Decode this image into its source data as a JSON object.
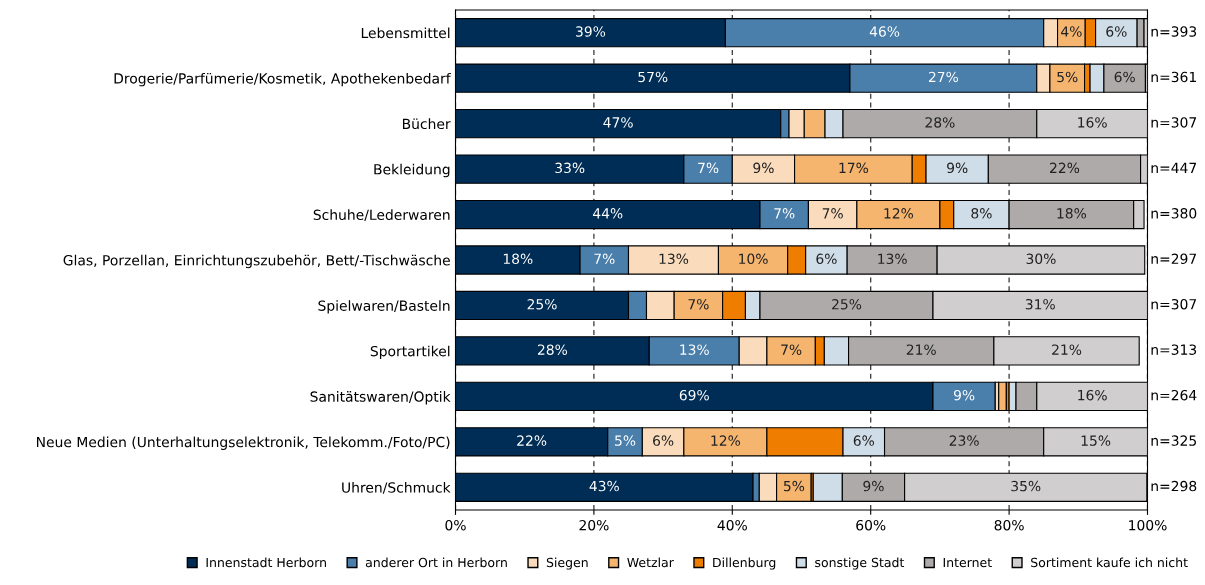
{
  "chart_data": {
    "type": "bar",
    "orientation": "horizontal",
    "stacked": true,
    "categories": [
      "Lebensmittel",
      "Drogerie/Parfümerie/Kosmetik, Apothekenbedarf",
      "Bücher",
      "Bekleidung",
      "Schuhe/Lederwaren",
      "Glas, Porzellan, Einrichtungszubehör, Bett/-Tischwäsche",
      "Spielwaren/Basteln",
      "Sportartikel",
      "Sanitätswaren/Optik",
      "Neue Medien (Unterhaltungselektronik, Telekomm./Foto/PC)",
      "Uhren/Schmuck"
    ],
    "series": [
      {
        "name": "Innenstadt Herborn",
        "color": "#002d55",
        "values": [
          39,
          57,
          47,
          33,
          44,
          18,
          25,
          28,
          69,
          22,
          43
        ],
        "value_labels": [
          "39%",
          "57%",
          "47%",
          "33%",
          "44%",
          "18%",
          "25%",
          "28%",
          "69%",
          "22%",
          "43%"
        ]
      },
      {
        "name": "anderer Ort in Herborn",
        "color": "#4a7eab",
        "values": [
          46,
          27,
          1.2,
          7,
          7,
          7,
          2.6,
          13,
          9,
          5,
          0.9
        ],
        "value_labels": [
          "46%",
          "27%",
          null,
          "7%",
          "7%",
          "7%",
          null,
          "13%",
          "9%",
          "5%",
          null
        ]
      },
      {
        "name": "Siegen",
        "color": "#fadcbc",
        "values": [
          2,
          1.9,
          2.2,
          9,
          7,
          13,
          4,
          4,
          0.5,
          6,
          2.5
        ],
        "value_labels": [
          null,
          null,
          null,
          "9%",
          "7%",
          "13%",
          null,
          null,
          null,
          "6%",
          null
        ]
      },
      {
        "name": "Wetzlar",
        "color": "#f5b56e",
        "values": [
          4,
          5,
          3,
          17,
          12,
          10,
          7,
          7,
          1.1,
          12,
          5
        ],
        "value_labels": [
          "4%",
          "5%",
          null,
          "17%",
          "12%",
          "10%",
          "7%",
          "7%",
          null,
          "12%",
          "5%"
        ]
      },
      {
        "name": "Dillenburg",
        "color": "#ee7d00",
        "values": [
          1.5,
          0.8,
          null,
          2,
          2,
          2.6,
          3.3,
          1.3,
          0.4,
          11,
          0.3
        ],
        "value_labels": [
          null,
          null,
          null,
          null,
          null,
          null,
          null,
          null,
          null,
          null,
          null
        ]
      },
      {
        "name": "sonstige Stadt",
        "color": "#cfdde8",
        "values": [
          6,
          2,
          2.6,
          9,
          8,
          6,
          2.1,
          3.5,
          1,
          6,
          4.2
        ],
        "value_labels": [
          "6%",
          null,
          null,
          "9%",
          "8%",
          "6%",
          null,
          null,
          null,
          "6%",
          null
        ]
      },
      {
        "name": "Internet",
        "color": "#aeaaaa",
        "values": [
          1,
          6,
          28,
          22,
          18,
          13,
          25,
          21,
          3,
          23,
          9
        ],
        "value_labels": [
          null,
          "6%",
          "28%",
          "22%",
          "18%",
          "13%",
          "25%",
          "21%",
          null,
          "23%",
          "9%"
        ]
      },
      {
        "name": "Sortiment kaufe ich nicht",
        "color": "#d0cecf",
        "values": [
          0.5,
          0.3,
          16,
          1,
          1.5,
          30,
          31,
          21,
          16,
          15,
          35
        ],
        "value_labels": [
          null,
          null,
          "16%",
          null,
          null,
          "30%",
          "31%",
          "21%",
          "16%",
          "15%",
          "35%"
        ]
      }
    ],
    "xlim": [
      0,
      100
    ],
    "xticks": [
      {
        "value": 0,
        "label": "0%"
      },
      {
        "value": 20,
        "label": "20%"
      },
      {
        "value": 40,
        "label": "40%"
      },
      {
        "value": 60,
        "label": "60%"
      },
      {
        "value": 80,
        "label": "80%"
      },
      {
        "value": 100,
        "label": "100%"
      }
    ],
    "grid": "x",
    "legend": "bottom",
    "marker": "square",
    "annotations": [
      "n=393",
      "n=361",
      "n=307",
      "n=447",
      "n=380",
      "n=297",
      "n=307",
      "n=313",
      "n=264",
      "n=325",
      "n=298"
    ]
  }
}
